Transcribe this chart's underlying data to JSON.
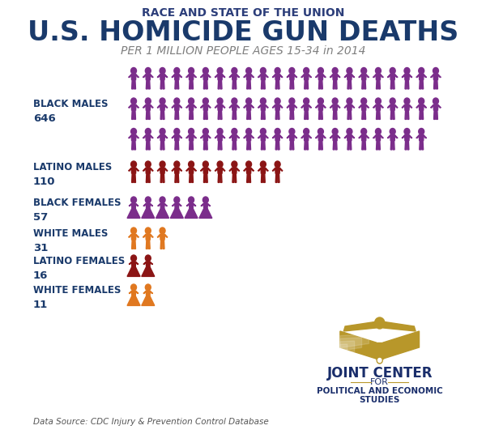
{
  "title_top": "RACE AND STATE OF THE UNION",
  "title_main": "U.S. HOMICIDE GUN DEATHS",
  "title_sub": "PER 1 MILLION PEOPLE AGES 15-34 in 2014",
  "datasource": "Data Source: CDC Injury & Prevention Control Database",
  "categories": [
    {
      "label_line1": "BLACK MALES",
      "label_line2": "646",
      "value": 646,
      "color": "#7B2D8B",
      "gender": "male",
      "n_icons": 65,
      "icons_per_row": 22,
      "n_rows": 3
    },
    {
      "label_line1": "LATINO MALES",
      "label_line2": "110",
      "value": 110,
      "color": "#8B1515",
      "gender": "male",
      "n_icons": 11,
      "icons_per_row": 11,
      "n_rows": 1
    },
    {
      "label_line1": "BLACK FEMALES",
      "label_line2": "57",
      "value": 57,
      "color": "#7B2D8B",
      "gender": "female",
      "n_icons": 6,
      "icons_per_row": 6,
      "n_rows": 1
    },
    {
      "label_line1": "WHITE MALES",
      "label_line2": "31",
      "value": 31,
      "color": "#E07820",
      "gender": "male",
      "n_icons": 3,
      "icons_per_row": 3,
      "n_rows": 1
    },
    {
      "label_line1": "LATINO FEMALES",
      "label_line2": "16",
      "value": 16,
      "color": "#8B1515",
      "gender": "female",
      "n_icons": 2,
      "icons_per_row": 2,
      "n_rows": 1
    },
    {
      "label_line1": "WHITE FEMALES",
      "label_line2": "11",
      "value": 11,
      "color": "#E07820",
      "gender": "female",
      "n_icons": 2,
      "icons_per_row": 2,
      "n_rows": 1
    }
  ],
  "background_color": "#FFFFFF",
  "label_color": "#1A3A6B",
  "title_top_color": "#2C3E7A",
  "title_main_color": "#1A3A6B",
  "title_sub_color": "#808080",
  "gold_color": "#B8972A"
}
